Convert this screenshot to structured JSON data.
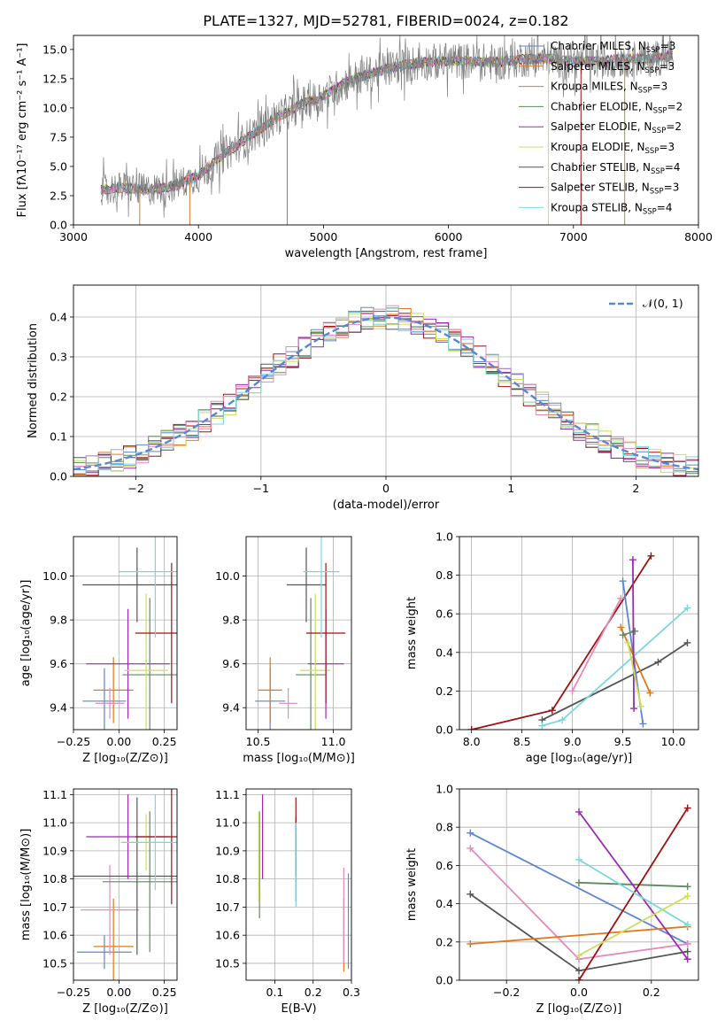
{
  "figure": {
    "title": "PLATE=1327, MJD=52781, FIBERID=0024, z=0.182"
  },
  "colors": {
    "blue": "#5b86d4",
    "orange": "#e0781e",
    "green": "#5f8a5f",
    "red": "#a01010",
    "purple": "#9b2ab0",
    "yellowgreen": "#c8e05a",
    "gray": "#555555",
    "cyan": "#7ad8dc",
    "pink": "#e48bbd",
    "grey_data": "#808080"
  },
  "chart_data": [
    {
      "id": "spectrum",
      "type": "line",
      "xlabel": "wavelength [Angstrom, rest frame]",
      "ylabel": "Flux [fλ10⁻¹⁷ erg cm⁻² s⁻¹ A⁻¹]",
      "xlim": [
        3000,
        8000
      ],
      "ylim": [
        0,
        16.2
      ],
      "xticks": [
        3000,
        4000,
        5000,
        6000,
        7000,
        8000
      ],
      "yticks": [
        0.0,
        2.5,
        5.0,
        7.5,
        10.0,
        12.5,
        15.0
      ],
      "legend_placement": "right",
      "legend": [
        {
          "label": "Chabrier MILES, N",
          "sub": "SSP",
          "suffix": "=3"
        },
        {
          "label": "Salpeter MILES, N",
          "sub": "SSP",
          "suffix": "=3"
        },
        {
          "label": "Kroupa MILES, N",
          "sub": "SSP",
          "suffix": "=3"
        },
        {
          "label": "Chabrier ELODIE, N",
          "sub": "SSP",
          "suffix": "=2"
        },
        {
          "label": "Salpeter ELODIE, N",
          "sub": "SSP",
          "suffix": "=2"
        },
        {
          "label": "Kroupa ELODIE, N",
          "sub": "SSP",
          "suffix": "=3"
        },
        {
          "label": "Chabrier STELIB, N",
          "sub": "SSP",
          "suffix": "=4"
        },
        {
          "label": "Salpeter STELIB, N",
          "sub": "SSP",
          "suffix": "=3"
        },
        {
          "label": "Kroupa STELIB, N",
          "sub": "SSP",
          "suffix": "=4"
        }
      ],
      "continuum": {
        "x": [
          3220,
          3400,
          3600,
          3800,
          4000,
          4200,
          4400,
          4600,
          4800,
          5000,
          5200,
          5400,
          5600,
          5800,
          6000,
          6200,
          6400,
          6600,
          6800,
          7000,
          7200,
          7400,
          7600,
          7800
        ],
        "y": [
          3.0,
          3.2,
          3.0,
          3.3,
          4.2,
          6.0,
          7.5,
          9.0,
          10.2,
          11.0,
          12.3,
          13.0,
          13.6,
          13.9,
          14.0,
          14.0,
          13.9,
          14.2,
          14.2,
          14.0,
          14.0,
          14.2,
          14.2,
          14.5
        ]
      }
    },
    {
      "id": "residuals",
      "type": "line",
      "xlabel": "(data-model)/error",
      "ylabel": "Normed distribution",
      "xlim": [
        -2.5,
        2.5
      ],
      "ylim": [
        0,
        0.48
      ],
      "xticks": [
        -2,
        -1,
        0,
        1,
        2
      ],
      "xticklabels": [
        "−2",
        "−1",
        "0",
        "1",
        "2"
      ],
      "yticks": [
        0.0,
        0.1,
        0.2,
        0.3,
        0.4
      ],
      "legend_placement": "top-right",
      "legend": [
        {
          "label": "𝒩(0, 1)"
        }
      ],
      "grid": true
    },
    {
      "id": "age_vs_Z",
      "type": "scatter",
      "xlabel": "Z [log₁₀(Z/Z⊙)]",
      "ylabel": "age  [log₁₀(age/yr)]",
      "xlim": [
        -0.25,
        0.32
      ],
      "ylim": [
        9.3,
        10.18
      ],
      "xticks": [
        -0.25,
        0.0,
        0.25
      ],
      "xticklabels": [
        "−0.25",
        "0.00",
        "0.25"
      ],
      "yticks": [
        9.4,
        9.6,
        9.8,
        10.0
      ],
      "grid": true,
      "points": [
        {
          "color": "blue",
          "x": -0.08,
          "xerr": 0.12,
          "y": 9.43,
          "yerr": 0.15
        },
        {
          "color": "orange",
          "x": -0.03,
          "xerr": 0.11,
          "y": 9.48,
          "yerr": 0.15
        },
        {
          "color": "pink",
          "x": -0.05,
          "xerr": 0.08,
          "y": 9.42,
          "yerr": 0.07
        },
        {
          "color": "purple",
          "x": 0.05,
          "xerr": 0.23,
          "y": 9.6,
          "yerr": 0.25
        },
        {
          "color": "green",
          "x": 0.17,
          "xerr": 0.15,
          "y": 9.55,
          "yerr": 0.35
        },
        {
          "color": "yellowgreen",
          "x": 0.15,
          "xerr": 0.12,
          "y": 9.57,
          "yerr": 0.35
        },
        {
          "color": "gray",
          "x": 0.1,
          "xerr": 0.3,
          "y": 9.96,
          "yerr": 0.17
        },
        {
          "color": "red",
          "x": 0.29,
          "xerr": 0.2,
          "y": 9.74,
          "yerr": 0.32
        },
        {
          "color": "cyan",
          "x": 0.2,
          "xerr": 0.2,
          "y": 10.02,
          "yerr": 0.3
        }
      ]
    },
    {
      "id": "age_vs_mass",
      "type": "scatter",
      "xlabel": "mass [log₁₀(M/M⊙)]",
      "ylabel": "",
      "xlim": [
        10.42,
        11.12
      ],
      "ylim": [
        9.3,
        10.18
      ],
      "xticks": [
        10.5,
        11.0
      ],
      "xticklabels": [
        "10.5",
        "11.0"
      ],
      "yticks": [
        9.4,
        9.6,
        9.8,
        10.0
      ],
      "grid": true,
      "points": [
        {
          "color": "blue",
          "x": 10.58,
          "xerr": 0.1,
          "y": 9.43,
          "yerr": 0.15
        },
        {
          "color": "orange",
          "x": 10.58,
          "xerr": 0.08,
          "y": 9.48,
          "yerr": 0.15
        },
        {
          "color": "pink",
          "x": 10.7,
          "xerr": 0.06,
          "y": 9.42,
          "yerr": 0.07
        },
        {
          "color": "purple",
          "x": 10.95,
          "xerr": 0.12,
          "y": 9.6,
          "yerr": 0.25
        },
        {
          "color": "green",
          "x": 10.85,
          "xerr": 0.1,
          "y": 9.55,
          "yerr": 0.35
        },
        {
          "color": "yellowgreen",
          "x": 10.88,
          "xerr": 0.1,
          "y": 9.57,
          "yerr": 0.35
        },
        {
          "color": "gray",
          "x": 10.82,
          "xerr": 0.13,
          "y": 9.96,
          "yerr": 0.17
        },
        {
          "color": "red",
          "x": 10.95,
          "xerr": 0.13,
          "y": 9.74,
          "yerr": 0.32
        },
        {
          "color": "cyan",
          "x": 10.92,
          "xerr": 0.12,
          "y": 10.02,
          "yerr": 0.3
        }
      ]
    },
    {
      "id": "weight_vs_age",
      "type": "line",
      "xlabel": "age  [log₁₀(age/yr)]",
      "ylabel": "mass weight",
      "xlim": [
        7.88,
        10.25
      ],
      "ylim": [
        0,
        1.0
      ],
      "xticks": [
        8.0,
        8.5,
        9.0,
        9.5,
        10.0
      ],
      "xticklabels": [
        "8.0",
        "8.5",
        "9.0",
        "9.5",
        "10.0"
      ],
      "yticks": [
        0.0,
        0.2,
        0.4,
        0.6,
        0.8,
        1.0
      ],
      "grid": true,
      "series": [
        {
          "color": "gray",
          "x": [
            8.7,
            9.85,
            10.14
          ],
          "y": [
            0.05,
            0.35,
            0.45
          ]
        },
        {
          "color": "cyan",
          "x": [
            8.7,
            8.9,
            10.14
          ],
          "y": [
            0.02,
            0.05,
            0.63
          ]
        },
        {
          "color": "red",
          "x": [
            8.0,
            8.8,
            9.78
          ],
          "y": [
            0.0,
            0.1,
            0.9
          ]
        },
        {
          "color": "blue",
          "x": [
            9.5,
            9.7
          ],
          "y": [
            0.77,
            0.03
          ]
        },
        {
          "color": "orange",
          "x": [
            9.48,
            9.77
          ],
          "y": [
            0.53,
            0.19
          ]
        },
        {
          "color": "green",
          "x": [
            9.5,
            9.62
          ],
          "y": [
            0.49,
            0.51
          ]
        },
        {
          "color": "purple",
          "x": [
            9.6,
            9.61
          ],
          "y": [
            0.88,
            0.11
          ]
        },
        {
          "color": "yellowgreen",
          "x": [
            9.55,
            9.68
          ],
          "y": [
            0.45,
            0.12
          ]
        },
        {
          "color": "pink",
          "x": [
            9.0,
            9.48
          ],
          "y": [
            0.2,
            0.68
          ]
        }
      ]
    },
    {
      "id": "mass_vs_Z",
      "type": "scatter",
      "xlabel": "Z [log₁₀(Z/Z⊙)]",
      "ylabel": "mass [log₁₀(M/M⊙)]",
      "xlim": [
        -0.25,
        0.32
      ],
      "ylim": [
        10.44,
        11.12
      ],
      "xticks": [
        -0.25,
        0.0,
        0.25
      ],
      "xticklabels": [
        "−0.25",
        "0.00",
        "0.25"
      ],
      "yticks": [
        10.5,
        10.6,
        10.7,
        10.8,
        10.9,
        11.0,
        11.1
      ],
      "grid": true,
      "points": [
        {
          "color": "blue",
          "x": -0.08,
          "xerr": 0.15,
          "y": 10.54,
          "yerr": 0.06
        },
        {
          "color": "orange",
          "x": -0.03,
          "xerr": 0.11,
          "y": 10.56,
          "yerr": 0.17
        },
        {
          "color": "pink",
          "x": -0.05,
          "xerr": 0.16,
          "y": 10.69,
          "yerr": 0.16
        },
        {
          "color": "purple",
          "x": 0.05,
          "xerr": 0.23,
          "y": 10.95,
          "yerr": 0.15
        },
        {
          "color": "green",
          "x": 0.17,
          "xerr": 0.26,
          "y": 10.79,
          "yerr": 0.25
        },
        {
          "color": "yellowgreen",
          "x": 0.15,
          "xerr": 0.14,
          "y": 10.93,
          "yerr": 0.1
        },
        {
          "color": "gray",
          "x": 0.1,
          "xerr": 0.35,
          "y": 10.81,
          "yerr": 0.28
        },
        {
          "color": "red",
          "x": 0.29,
          "xerr": 0.2,
          "y": 10.95,
          "yerr": 0.24
        },
        {
          "color": "cyan",
          "x": 0.2,
          "xerr": 0.18,
          "y": 10.93,
          "yerr": 0.17
        }
      ]
    },
    {
      "id": "mass_vs_ebv",
      "type": "scatter",
      "xlabel": "E(B-V)",
      "ylabel": "",
      "xlim": [
        0.025,
        0.3
      ],
      "ylim": [
        10.44,
        11.12
      ],
      "xticks": [
        0.1,
        0.2,
        0.3
      ],
      "xticklabels": [
        "0.1",
        "0.2",
        "0.3"
      ],
      "yticks": [
        10.5,
        10.6,
        10.7,
        10.8,
        10.9,
        11.0,
        11.1
      ],
      "grid": true,
      "points": [
        {
          "color": "blue",
          "x": 0.292,
          "y": 10.65,
          "yerr": 0.17
        },
        {
          "color": "orange",
          "x": 0.28,
          "y": 10.6,
          "yerr": 0.13
        },
        {
          "color": "pink",
          "x": 0.28,
          "y": 10.67,
          "yerr": 0.17
        },
        {
          "color": "purple",
          "x": 0.068,
          "y": 10.95,
          "yerr": 0.15
        },
        {
          "color": "green",
          "x": 0.06,
          "y": 10.85,
          "yerr": 0.19
        },
        {
          "color": "yellowgreen",
          "x": 0.058,
          "y": 10.88,
          "yerr": 0.16
        },
        {
          "color": "gray",
          "x": 0.155,
          "y": 10.87,
          "yerr": 0.15
        },
        {
          "color": "red",
          "x": 0.155,
          "y": 10.95,
          "yerr": 0.14
        },
        {
          "color": "cyan",
          "x": 0.155,
          "y": 10.85,
          "yerr": 0.15
        }
      ]
    },
    {
      "id": "weight_vs_Z",
      "type": "line",
      "xlabel": "Z [log₁₀(Z/Z⊙)]",
      "ylabel": "mass weight",
      "xlim": [
        -0.33,
        0.33
      ],
      "ylim": [
        0,
        1.0
      ],
      "xticks": [
        -0.2,
        0.0,
        0.2
      ],
      "xticklabels": [
        "−0.2",
        "0.0",
        "0.2"
      ],
      "yticks": [
        0.0,
        0.2,
        0.4,
        0.6,
        0.8,
        1.0
      ],
      "grid": true,
      "series": [
        {
          "color": "blue",
          "x": [
            -0.3,
            0.3
          ],
          "y": [
            0.77,
            0.19
          ]
        },
        {
          "color": "pink",
          "x": [
            -0.3,
            0.0,
            0.3
          ],
          "y": [
            0.69,
            0.11,
            0.19
          ]
        },
        {
          "color": "gray",
          "x": [
            -0.3,
            0.0,
            0.3
          ],
          "y": [
            0.45,
            0.05,
            0.15
          ]
        },
        {
          "color": "orange",
          "x": [
            -0.3,
            0.3
          ],
          "y": [
            0.19,
            0.28
          ]
        },
        {
          "color": "green",
          "x": [
            0.0,
            0.3
          ],
          "y": [
            0.51,
            0.49
          ]
        },
        {
          "color": "red",
          "x": [
            0.0,
            0.3
          ],
          "y": [
            0.0,
            0.9
          ]
        },
        {
          "color": "purple",
          "x": [
            0.0,
            0.3
          ],
          "y": [
            0.88,
            0.11
          ]
        },
        {
          "color": "cyan",
          "x": [
            0.0,
            0.3
          ],
          "y": [
            0.63,
            0.29
          ]
        },
        {
          "color": "yellowgreen",
          "x": [
            0.0,
            0.3
          ],
          "y": [
            0.13,
            0.44
          ]
        }
      ]
    }
  ]
}
